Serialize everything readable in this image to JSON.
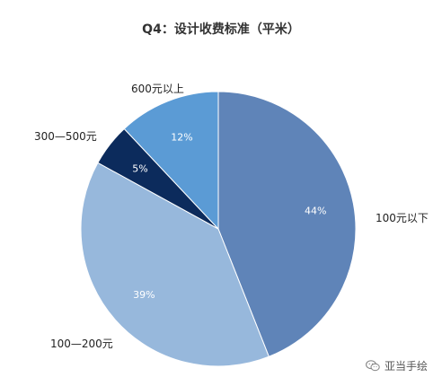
{
  "chart_data": {
    "type": "pie",
    "title": "Q4：设计收费标准（平米）",
    "slices": [
      {
        "label": "100元以下",
        "value": 44,
        "pct_label": "44%",
        "color": "#5f84b8"
      },
      {
        "label": "100—200元",
        "value": 39,
        "pct_label": "39%",
        "color": "#97b8dc"
      },
      {
        "label": "300—500元",
        "value": 5,
        "pct_label": "5%",
        "color": "#0c2b5c"
      },
      {
        "label": "600元以上",
        "value": 12,
        "pct_label": "12%",
        "color": "#5b9bd5"
      }
    ]
  },
  "watermark": {
    "text": "亚当手绘",
    "icon": "wechat-icon"
  }
}
